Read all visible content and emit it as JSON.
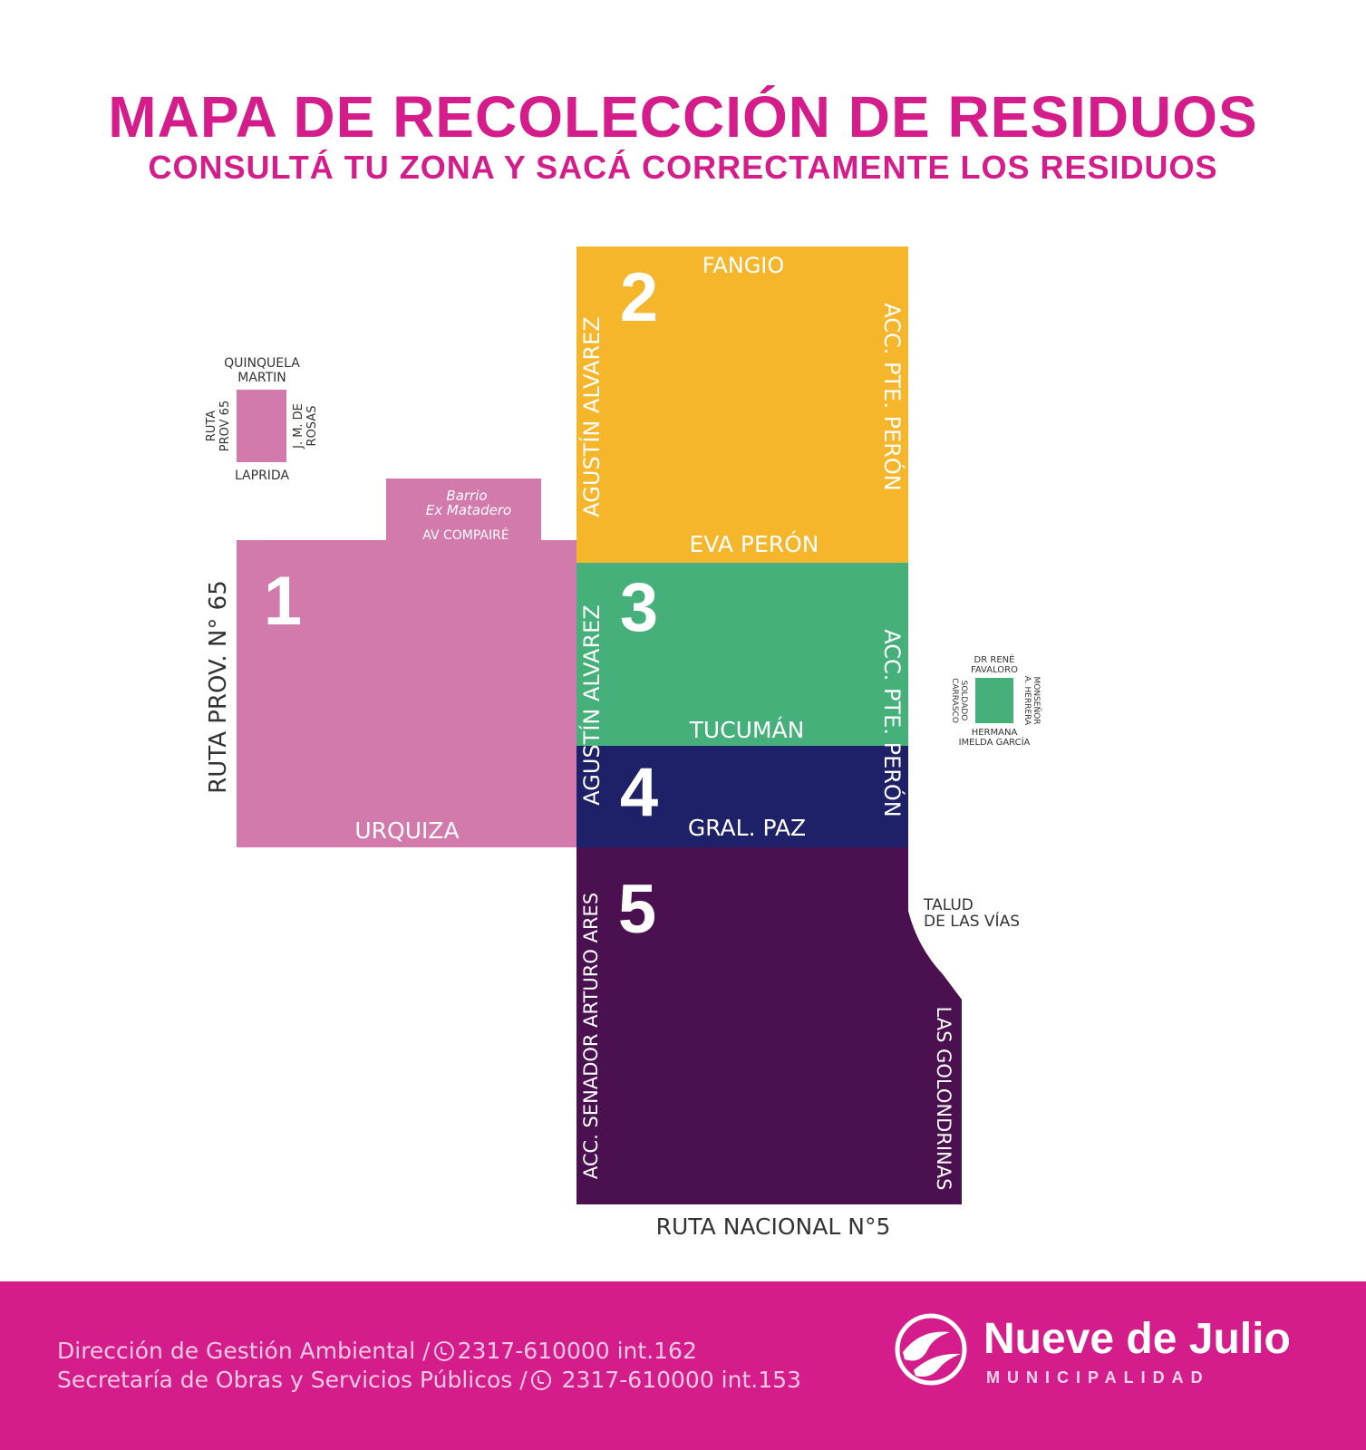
{
  "header": {
    "title": "MAPA DE RECOLECCIÓN DE RESIDUOS",
    "subtitle": "CONSULTÁ TU ZONA Y SACÁ CORRECTAMENTE LOS RESIDUOS"
  },
  "colors": {
    "brand": "#d41d8a",
    "zone1": "#d27aab",
    "zone2": "#f5b62b",
    "zone3": "#46b07a",
    "zone4": "#1e2167",
    "zone5": "#4a1050"
  },
  "zones": [
    {
      "id": "1",
      "color": "#d27aab"
    },
    {
      "id": "2",
      "color": "#f5b62b"
    },
    {
      "id": "3",
      "color": "#46b07a"
    },
    {
      "id": "4",
      "color": "#1e2167"
    },
    {
      "id": "5",
      "color": "#4a1050"
    }
  ],
  "streets": {
    "fangio": "FANGIO",
    "eva_peron": "EVA PERÓN",
    "tucuman": "TUCUMÁN",
    "gral_paz": "GRAL. PAZ",
    "urquiza": "URQUIZA",
    "av_compaire": "AV COMPAIRÉ",
    "barrio_1": "Barrio",
    "barrio_2": "Ex Matadero",
    "ruta_prov_65": "RUTA PROV. N° 65",
    "agustin_alvarez": "AGUSTÍN ALVAREZ",
    "acc_peron": "ACC. PTE. PERÓN",
    "acc_ares": "ACC. SENADOR ARTURO ARES",
    "golondrinas": "LAS GOLONDRINAS",
    "ruta_nacional_5": "RUTA NACIONAL N°5",
    "talud_1": "TALUD",
    "talud_2": "DE LAS VÍAS"
  },
  "inset_pink": {
    "top_1": "QUINQUELA",
    "top_2": "MARTIN",
    "bottom": "LAPRIDA",
    "left_1": "RUTA",
    "left_2": "PROV 65",
    "right_1": "J. M. DE",
    "right_2": "ROSAS"
  },
  "inset_green": {
    "top_1": "DR RENÉ",
    "top_2": "FAVALORO",
    "bottom_1": "HERMANA",
    "bottom_2": "IMELDA GARCÍA",
    "left_1": "SOLDADO",
    "left_2": "CARRASCO",
    "right_1": "MONSEÑOR",
    "right_2": "A. HERRERA"
  },
  "footer": {
    "line1_text": "Dirección de Gestión Ambiental /",
    "line1_phone": "2317-610000 int.162",
    "line2_text": "Secretaría de Obras y Servicios Públicos /",
    "line2_phone": "2317-610000 int.153",
    "logo_name": "Nueve de Julio",
    "logo_sub": "MUNICIPALIDAD"
  }
}
